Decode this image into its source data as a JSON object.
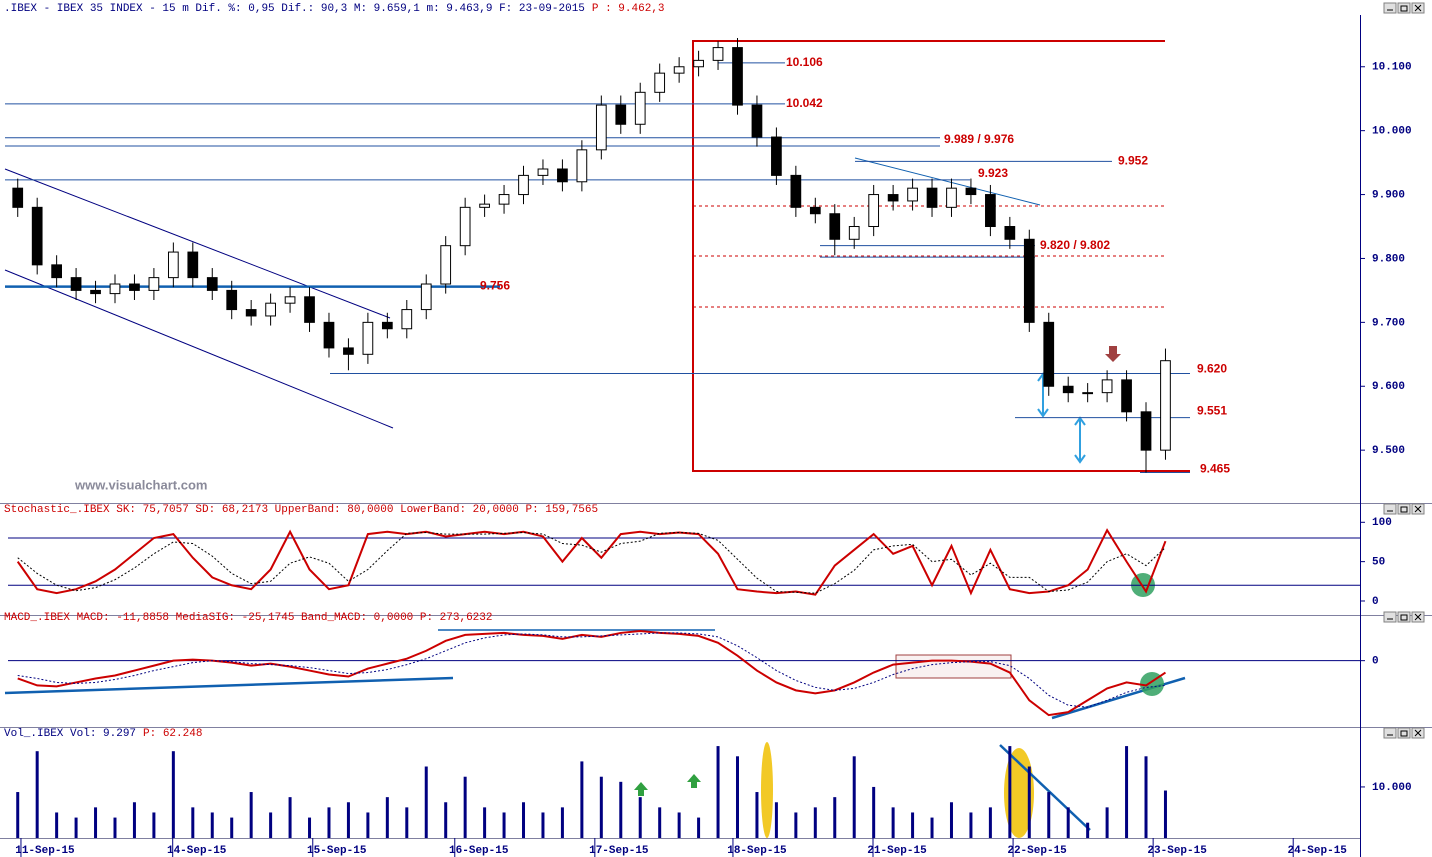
{
  "watermark": "www.visualchart.com",
  "chart_data": [
    {
      "type": "candlestick",
      "title": ".IBEX - IBEX 35 INDEX -  15 m Dif. %: 0,95 Dif.: 90,3 M: 9.659,1 m: 9.463,9 F: 23-09-2015",
      "title_extra": "P : 9.462,3",
      "xlim": [
        0,
        69.5
      ],
      "ylim": [
        9422,
        10181
      ],
      "yticks": [
        {
          "value": 10100,
          "label": "10.100"
        },
        {
          "value": 10000,
          "label": "10.000"
        },
        {
          "value": 9900,
          "label": "9.900"
        },
        {
          "value": 9800,
          "label": "9.800"
        },
        {
          "value": 9700,
          "label": "9.700"
        },
        {
          "value": 9600,
          "label": "9.600"
        },
        {
          "value": 9500,
          "label": "9.500"
        }
      ],
      "up_color": "#ffffff",
      "down_color": "#000000",
      "wick_color": "#000000",
      "open": [
        9910,
        9880,
        9790,
        9770,
        9750,
        9745,
        9760,
        9750,
        9770,
        9810,
        9770,
        9750,
        9720,
        9710,
        9730,
        9740,
        9700,
        9660,
        9650,
        9700,
        9690,
        9720,
        9760,
        9820,
        9880,
        9885,
        9900,
        9930,
        9940,
        9920,
        9970,
        10040,
        10010,
        10060,
        10090,
        10100,
        10110,
        10130,
        10040,
        9990,
        9930,
        9880,
        9870,
        9830,
        9850,
        9900,
        9890,
        9910,
        9880,
        9910,
        9900,
        9850,
        9830,
        9700,
        9600,
        9590,
        9590,
        9610,
        9560,
        9500
      ],
      "high": [
        9925,
        9895,
        9805,
        9785,
        9765,
        9775,
        9775,
        9785,
        9825,
        9825,
        9785,
        9765,
        9735,
        9745,
        9755,
        9755,
        9715,
        9675,
        9715,
        9715,
        9735,
        9775,
        9835,
        9895,
        9900,
        9915,
        9945,
        9955,
        9955,
        9985,
        10055,
        10055,
        10075,
        10105,
        10115,
        10125,
        10140,
        10145,
        10055,
        10005,
        9945,
        9895,
        9885,
        9865,
        9915,
        9915,
        9925,
        9925,
        9925,
        9925,
        9915,
        9865,
        9845,
        9715,
        9615,
        9605,
        9625,
        9625,
        9575,
        9659
      ],
      "low": [
        9865,
        9775,
        9755,
        9735,
        9730,
        9730,
        9735,
        9735,
        9755,
        9755,
        9735,
        9705,
        9695,
        9695,
        9715,
        9685,
        9645,
        9625,
        9635,
        9675,
        9675,
        9705,
        9745,
        9805,
        9865,
        9870,
        9885,
        9915,
        9905,
        9905,
        9955,
        9995,
        9995,
        10045,
        10075,
        10085,
        10095,
        10025,
        9975,
        9915,
        9865,
        9855,
        9805,
        9815,
        9835,
        9875,
        9875,
        9865,
        9865,
        9885,
        9835,
        9815,
        9685,
        9585,
        9575,
        9575,
        9575,
        9545,
        9465,
        9485
      ],
      "close": [
        9880,
        9790,
        9770,
        9750,
        9745,
        9760,
        9750,
        9770,
        9810,
        9770,
        9750,
        9720,
        9710,
        9730,
        9740,
        9700,
        9660,
        9650,
        9700,
        9690,
        9720,
        9760,
        9820,
        9880,
        9885,
        9900,
        9930,
        9940,
        9920,
        9970,
        10040,
        10010,
        10060,
        10090,
        10100,
        10110,
        10130,
        10040,
        9990,
        9930,
        9880,
        9870,
        9830,
        9850,
        9900,
        9890,
        9910,
        9880,
        9910,
        9900,
        9850,
        9830,
        9700,
        9600,
        9590,
        9590,
        9610,
        9560,
        9500,
        9640
      ],
      "levels": [
        {
          "values": [
            10106
          ],
          "label": "10.106"
        },
        {
          "values": [
            10042
          ],
          "label": "10.042"
        },
        {
          "values": [
            9989,
            9976
          ],
          "label": "9.989 / 9.976"
        },
        {
          "values": [
            9923
          ],
          "label": "9.923"
        },
        {
          "values": [
            9952
          ],
          "label": "9.952"
        },
        {
          "values": [
            9820,
            9802
          ],
          "label": "9.820 / 9.802"
        },
        {
          "values": [
            9756
          ],
          "label": "9.756"
        },
        {
          "values": [
            9620
          ],
          "label": "9.620"
        },
        {
          "values": [
            9551
          ],
          "label": "9.551"
        },
        {
          "values": [
            9465
          ],
          "label": "9.465"
        }
      ]
    },
    {
      "type": "line",
      "title": "Stochastic_.IBEX SK: 75,7057 SD: 68,2173 UpperBand: 80,0000 LowerBand: 20,0000 P: 159,7565",
      "xlim": [
        0,
        69.5
      ],
      "ylim": [
        -14,
        108
      ],
      "yticks": [
        0,
        50,
        100
      ],
      "bands": [
        80,
        20
      ],
      "series": [
        {
          "name": "SK",
          "color": "#cc0000",
          "values": [
            50,
            15,
            10,
            15,
            25,
            40,
            60,
            80,
            85,
            55,
            30,
            20,
            15,
            40,
            88,
            40,
            15,
            20,
            85,
            88,
            85,
            88,
            82,
            85,
            88,
            85,
            88,
            82,
            50,
            80,
            55,
            85,
            88,
            85,
            87,
            85,
            60,
            15,
            12,
            10,
            12,
            8,
            45,
            65,
            85,
            60,
            70,
            20,
            70,
            10,
            65,
            15,
            10,
            12,
            20,
            40,
            90,
            50,
            12,
            76
          ]
        },
        {
          "name": "SD",
          "color": "#000000",
          "values": [
            55,
            35,
            20,
            13,
            17,
            27,
            42,
            60,
            75,
            73,
            57,
            35,
            22,
            25,
            48,
            56,
            48,
            25,
            40,
            64,
            86,
            87,
            85,
            85,
            85,
            86,
            87,
            85,
            73,
            71,
            62,
            73,
            76,
            86,
            87,
            86,
            77,
            53,
            29,
            12,
            11,
            10,
            22,
            39,
            65,
            70,
            72,
            50,
            53,
            33,
            48,
            30,
            30,
            12,
            14,
            24,
            50,
            60,
            45,
            68
          ]
        }
      ]
    },
    {
      "type": "line",
      "title": "MACD_.IBEX MACD: -11,8858 MediaSIG: -25,1745 Band_MACD: 0,0000 P: 273,6232",
      "xlim": [
        0,
        69.5
      ],
      "ylim": [
        -67,
        35
      ],
      "yticks": [
        0
      ],
      "bands": [
        0
      ],
      "series": [
        {
          "name": "MACD",
          "color": "#cc0000",
          "values": [
            -18,
            -25,
            -26,
            -22,
            -18,
            -15,
            -10,
            -5,
            0,
            1,
            0,
            -2,
            -5,
            -3,
            -6,
            -10,
            -14,
            -16,
            -8,
            -3,
            2,
            10,
            20,
            26,
            27,
            28,
            26,
            25,
            22,
            26,
            24,
            28,
            30,
            28,
            27,
            25,
            18,
            5,
            -10,
            -22,
            -30,
            -33,
            -30,
            -22,
            -12,
            -4,
            -2,
            0,
            0,
            -1,
            -3,
            -12,
            -40,
            -55,
            -52,
            -40,
            -28,
            -22,
            -25,
            -12
          ]
        },
        {
          "name": "MediaSIG",
          "color": "#000080",
          "values": [
            -15,
            -18,
            -22,
            -23,
            -22,
            -19,
            -15,
            -10,
            -6,
            -2,
            0,
            -1,
            -3,
            -4,
            -5,
            -7,
            -10,
            -13,
            -12,
            -9,
            -4,
            2,
            10,
            18,
            23,
            26,
            27,
            26,
            24,
            24,
            25,
            26,
            27,
            28,
            28,
            27,
            24,
            15,
            3,
            -10,
            -20,
            -27,
            -30,
            -28,
            -22,
            -14,
            -8,
            -4,
            -2,
            -1,
            -1,
            -5,
            -18,
            -35,
            -45,
            -47,
            -40,
            -32,
            -27,
            -25
          ]
        }
      ]
    },
    {
      "type": "bar",
      "title": "Vol_.IBEX Vol: 9.297",
      "title_extra": "P: 62.248",
      "xlim": [
        0,
        69.5
      ],
      "ylim": [
        0,
        18800
      ],
      "yticks": [
        {
          "value": 10000,
          "label": "10.000"
        }
      ],
      "color": "#000080",
      "values": [
        9000,
        17000,
        5000,
        4000,
        6000,
        4000,
        7000,
        5000,
        17000,
        6000,
        5000,
        4000,
        9000,
        5000,
        8000,
        4000,
        6000,
        7000,
        5000,
        8000,
        6000,
        14000,
        7000,
        12000,
        6000,
        5000,
        7000,
        5000,
        6000,
        15000,
        12000,
        11000,
        8000,
        6000,
        5000,
        4000,
        18000,
        16000,
        9000,
        7000,
        5000,
        6000,
        8000,
        16000,
        10000,
        6000,
        5000,
        4000,
        7000,
        5000,
        6000,
        18000,
        14000,
        9000,
        6000,
        3000,
        6000,
        18000,
        16000,
        9297
      ],
      "xticks": [
        {
          "value": 1.9,
          "label": "11-Sep-15"
        },
        {
          "value": 9.7,
          "label": "14-Sep-15"
        },
        {
          "value": 16.9,
          "label": "15-Sep-15"
        },
        {
          "value": 24.2,
          "label": "16-Sep-15"
        },
        {
          "value": 31.4,
          "label": "17-Sep-15"
        },
        {
          "value": 38.5,
          "label": "18-Sep-15"
        },
        {
          "value": 45.7,
          "label": "21-Sep-15"
        },
        {
          "value": 52.9,
          "label": "22-Sep-15"
        },
        {
          "value": 60.1,
          "label": "23-Sep-15"
        },
        {
          "value": 67.3,
          "label": "24-Sep-15"
        }
      ]
    }
  ]
}
